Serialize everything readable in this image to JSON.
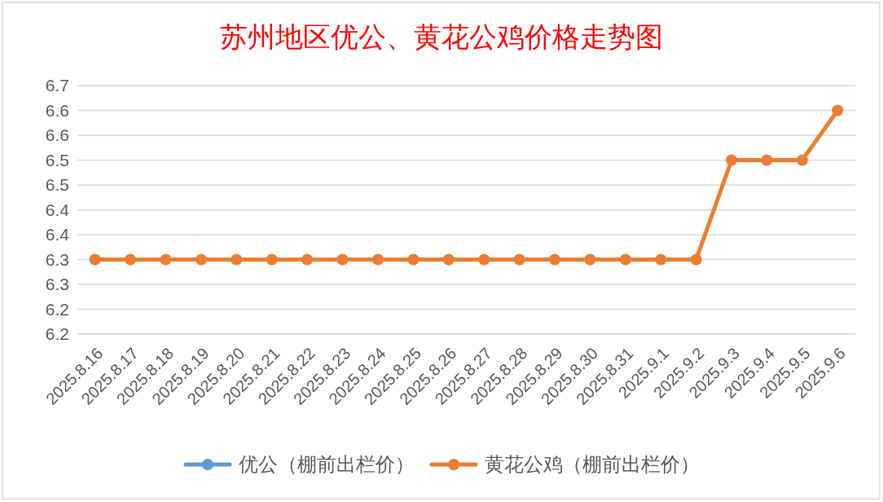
{
  "chart_data": {
    "type": "line",
    "title": "苏州地区优公、黄花公鸡价格走势图",
    "categories": [
      "2025.8.16",
      "2025.8.17",
      "2025.8.18",
      "2025.8.19",
      "2025.8.20",
      "2025.8.21",
      "2025.8.22",
      "2025.8.23",
      "2025.8.24",
      "2025.8.25",
      "2025.8.26",
      "2025.8.27",
      "2025.8.28",
      "2025.8.29",
      "2025.8.30",
      "2025.8.31",
      "2025.9.1",
      "2025.9.2",
      "2025.9.3",
      "2025.9.4",
      "2025.9.5",
      "2025.9.6"
    ],
    "series": [
      {
        "name": "优公（棚前出栏价）",
        "color": "#5b9bd5",
        "values": [
          null,
          null,
          null,
          null,
          null,
          null,
          null,
          null,
          null,
          null,
          null,
          null,
          null,
          null,
          null,
          null,
          null,
          null,
          null,
          null,
          null,
          null
        ]
      },
      {
        "name": "黄花公鸡（棚前出栏价）",
        "color": "#ed7d31",
        "values": [
          6.3,
          6.3,
          6.3,
          6.3,
          6.3,
          6.3,
          6.3,
          6.3,
          6.3,
          6.3,
          6.3,
          6.3,
          6.3,
          6.3,
          6.3,
          6.3,
          6.3,
          6.3,
          6.5,
          6.5,
          6.5,
          6.6
        ]
      }
    ],
    "ylim": [
      6.15,
      6.65
    ],
    "yticks": [
      {
        "value": 6.15,
        "label": "6.2"
      },
      6.2,
      {
        "value": 6.25,
        "label": "6.3"
      },
      6.3,
      {
        "value": 6.35,
        "label": "6.4"
      },
      6.4,
      {
        "value": 6.45,
        "label": "6.5"
      },
      6.5,
      {
        "value": 6.55,
        "label": "6.6"
      },
      6.6,
      {
        "value": 6.65,
        "label": "6.7"
      }
    ],
    "grid": "y",
    "legend": "bottom",
    "marker": "circle",
    "line_style": "solid"
  }
}
